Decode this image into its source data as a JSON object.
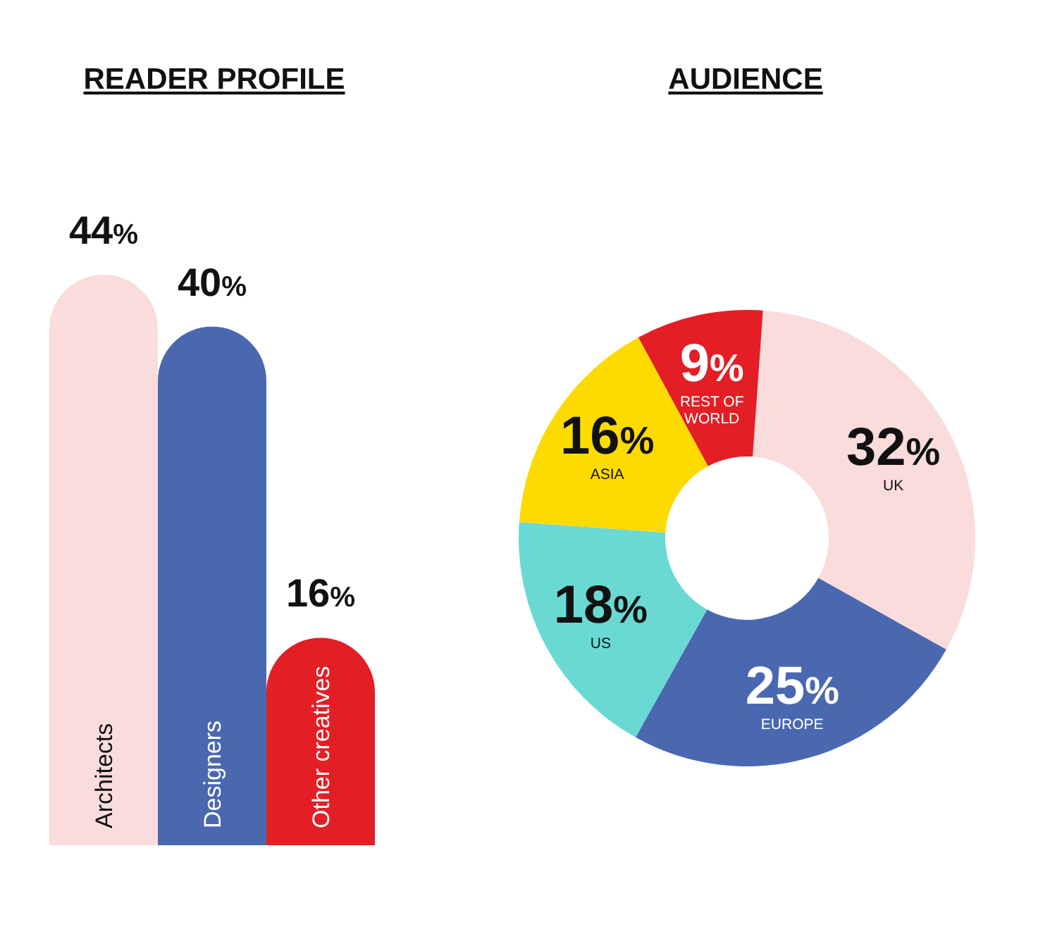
{
  "chart_data": [
    {
      "type": "bar",
      "title": "READER PROFILE",
      "categories": [
        "Architects",
        "Designers",
        "Other creatives"
      ],
      "values": [
        44,
        40,
        16
      ],
      "colors": [
        "#fadcdd",
        "#4a68b0",
        "#e31e25"
      ],
      "value_labels": [
        "44%",
        "40%",
        "16%"
      ]
    },
    {
      "type": "donut",
      "title": "AUDIENCE",
      "categories": [
        "UK",
        "EUROPE",
        "US",
        "ASIA",
        "REST OF WORLD"
      ],
      "values": [
        32,
        25,
        18,
        16,
        9
      ],
      "colors": [
        "#fadcdd",
        "#4a68b0",
        "#6ad9d4",
        "#fedb00",
        "#e31e25"
      ],
      "value_labels": [
        "32%",
        "25%",
        "18%",
        "16%",
        "9%"
      ]
    }
  ]
}
